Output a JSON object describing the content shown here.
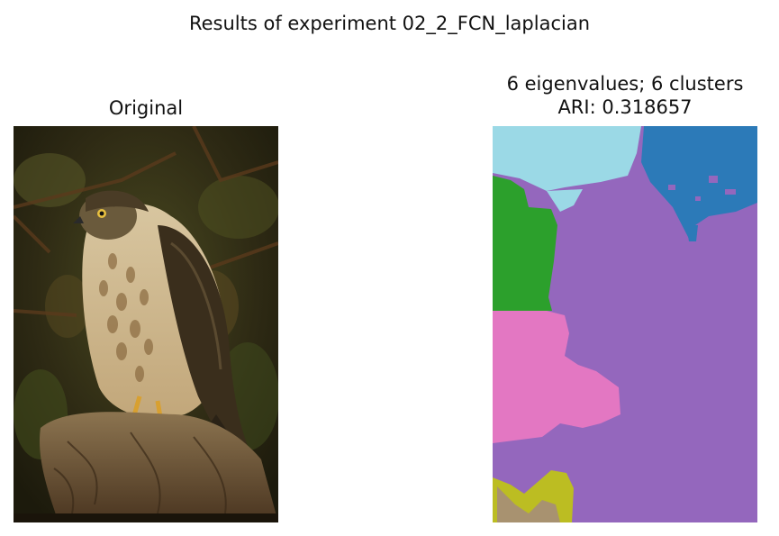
{
  "figure": {
    "suptitle": "Results of experiment 02_2_FCN_laplacian"
  },
  "panels": [
    {
      "title": "Original",
      "image_description": "photograph of a hawk perched on a tree stump against a dark green-brown background"
    },
    {
      "title_line1": "6 eigenvalues; 6 clusters",
      "title_line2": "ARI: 0.318657",
      "image_description": "cluster segmentation map with 6 colored regions"
    }
  ],
  "colors": {
    "background": "#ffffff",
    "cluster_light_blue": "#9bd9e6",
    "cluster_blue": "#2c7ab8",
    "cluster_purple": "#9467bd",
    "cluster_green": "#2ca02c",
    "cluster_pink": "#e377c2",
    "cluster_olive": "#bcbd22"
  }
}
